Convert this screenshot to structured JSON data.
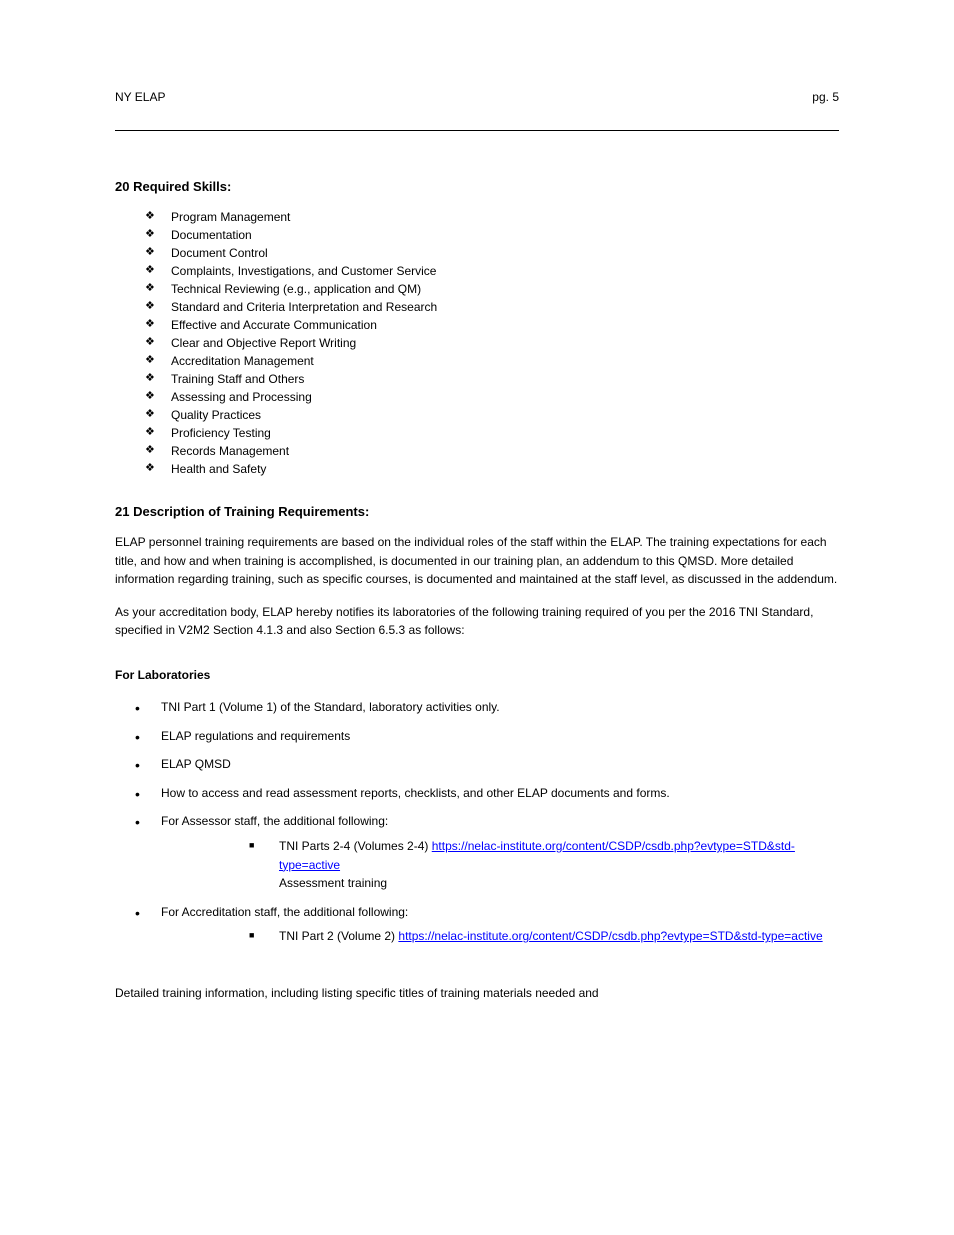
{
  "header": {
    "org_label": "NY ELAP",
    "page_number": "pg.  5"
  },
  "skills": {
    "title": "20  Required Skills:",
    "items": [
      "Program Management",
      "Documentation",
      "Document Control",
      "Complaints, Investigations, and Customer Service",
      "Technical Reviewing (e.g., application and QM)",
      "Standard and Criteria Interpretation and Research",
      "Effective and Accurate Communication",
      "Clear and Objective Report Writing",
      "Accreditation Management",
      "Training Staff and Others",
      "Assessing and Processing",
      "Quality Practices",
      "Proficiency Testing",
      "Records Management",
      "Health and Safety"
    ]
  },
  "desc": {
    "title": "21  Description of Training Requirements:",
    "para1": "ELAP personnel training requirements are based on the individual roles of the staff within the ELAP.  The training expectations for each title, and how and when training is accomplished, is documented in our training plan, an addendum to this QMSD.  More detailed information regarding training, such as specific courses, is documented and maintained at the staff level, as discussed in the addendum.",
    "para2": "As your accreditation body, ELAP hereby notifies its laboratories of the following training required of you per the 2016 TNI Standard, specified in V2M2 Section 4.1.3 and also Section 6.5.3 as follows:"
  },
  "labs": {
    "heading": "For Laboratories",
    "top_items": [
      "TNI Part 1 (Volume 1) of the Standard, laboratory activities only.",
      "ELAP regulations and requirements",
      "ELAP QMSD",
      "How to access and read assessment reports, checklists, and other ELAP documents and forms."
    ],
    "assessors": {
      "lead": "For Assessor staff, the additional following:",
      "sub_lead": "TNI Parts 2-4 (Volumes 2-4)",
      "link_text": "https://nelac-institute.org/content/CSDP/csdb.php?evtype=STD&std-type=active",
      "trail_line": "Assessment training"
    },
    "ab_staff": {
      "lead": "For Accreditation staff, the additional following:",
      "sub_lead": "TNI Part 2 (Volume 2)",
      "link_text": "https://nelac-institute.org/content/CSDP/csdb.php?evtype=STD&std-type=active"
    }
  },
  "trailer": "Detailed training information, including listing specific titles of training materials needed and",
  "link_color": "#0000ff"
}
